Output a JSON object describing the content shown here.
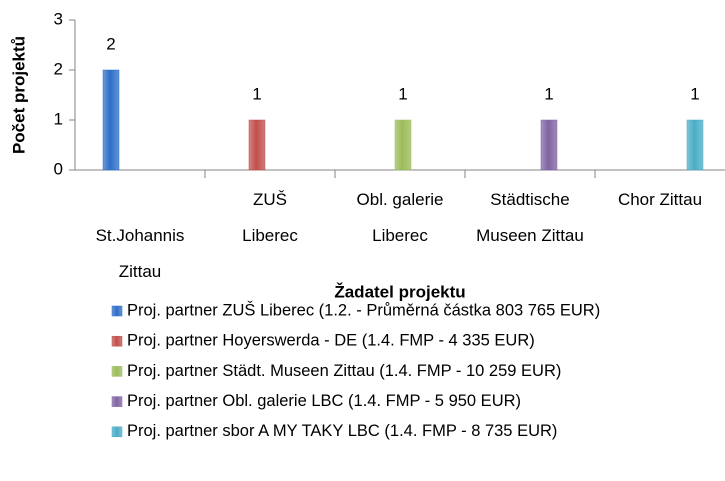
{
  "chart_data": {
    "type": "bar",
    "y_label": "Počet projektů",
    "x_label": "Žadatel projektu",
    "categories": [
      "St.Johannis Zittau",
      "ZUŠ Liberec",
      "Obl. galerie Liberec",
      "Städtische Museen Zittau",
      "Chor Zittau"
    ],
    "series": [
      {
        "name": "Proj. partner ZUŠ Liberec (1.2. - Průměrná částka 803 765 EUR)",
        "color": "#2e6ec8",
        "values": [
          2,
          null,
          null,
          null,
          null
        ]
      },
      {
        "name": "Proj. partner Hoyerswerda - DE (1.4. FMP - 4 335 EUR)",
        "color": "#c0504d",
        "values": [
          null,
          1,
          null,
          null,
          null
        ]
      },
      {
        "name": "Proj. partner Städt. Museen Zittau (1.4. FMP - 10 259 EUR)",
        "color": "#9bbb59",
        "values": [
          null,
          null,
          1,
          null,
          null
        ]
      },
      {
        "name": "Proj. partner Obl. galerie LBC (1.4. FMP - 5 950 EUR)",
        "color": "#8064a2",
        "values": [
          null,
          null,
          null,
          1,
          null
        ]
      },
      {
        "name": "Proj. partner sbor A MY TAKY LBC (1.4. FMP - 8 735 EUR)",
        "color": "#4bacc6",
        "values": [
          null,
          null,
          null,
          null,
          1
        ]
      }
    ],
    "ylim": [
      0,
      3
    ],
    "yticks": [
      0,
      1,
      2,
      3
    ],
    "grid": false,
    "legend": "bottom",
    "data_labels": true
  }
}
